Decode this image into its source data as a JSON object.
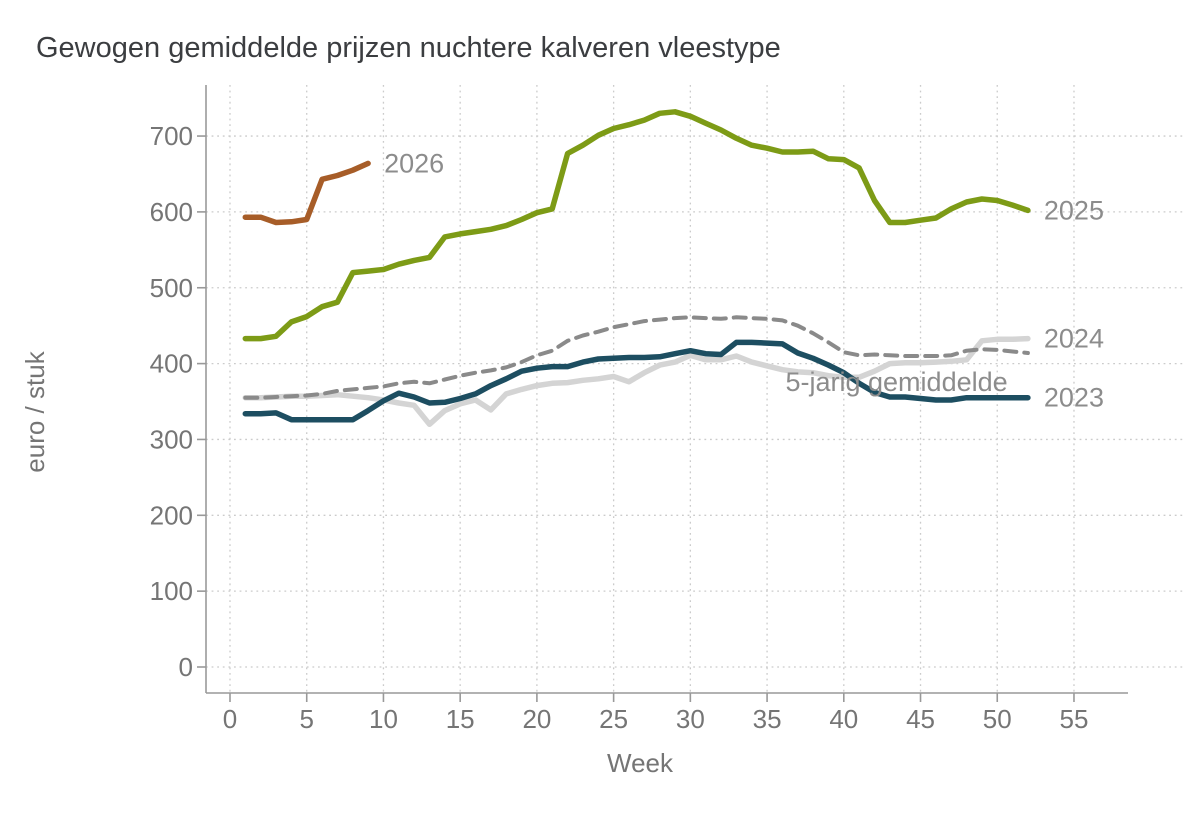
{
  "title": "Gewogen gemiddelde prijzen nuchtere kalveren vleestype",
  "chart_data": {
    "type": "line",
    "title": "Gewogen gemiddelde prijzen nuchtere kalveren vleestype",
    "xlabel": "Week",
    "ylabel": "euro / stuk",
    "x_ticks": [
      0,
      5,
      10,
      15,
      20,
      25,
      30,
      35,
      40,
      45,
      50,
      55
    ],
    "y_ticks": [
      0,
      100,
      200,
      300,
      400,
      500,
      600,
      700
    ],
    "xlim": [
      0,
      58.5
    ],
    "ylim": [
      0,
      767
    ],
    "grid": "dotted",
    "legend_position": "inline-labels",
    "colors": {
      "grid": "#cbcbcb",
      "axis": "#999999",
      "tick_text": "#757575",
      "title_text": "#3b3d40",
      "label_text": "#8c8c8c"
    },
    "series": [
      {
        "name": "2024",
        "label": "2024",
        "color": "#d4d4d4",
        "style": "solid",
        "width": 5.5,
        "start_week": 1,
        "label_at": "end",
        "values": [
          355,
          355,
          356,
          357,
          357,
          358,
          359,
          357,
          355,
          352,
          348,
          345,
          320,
          338,
          347,
          352,
          339,
          360,
          366,
          371,
          374,
          375,
          378,
          380,
          383,
          376,
          388,
          398,
          402,
          411,
          405,
          405,
          410,
          402,
          397,
          392,
          389,
          388,
          384,
          382,
          382,
          390,
          400,
          401,
          401,
          402,
          403,
          405,
          430,
          432,
          432,
          433
        ]
      },
      {
        "name": "5-jarig gemiddelde",
        "label": "5-jarig gemiddelde",
        "color": "#8a8a8a",
        "style": "dashed",
        "width": 4,
        "start_week": 1,
        "label_at": {
          "week": 36.2,
          "value": 364
        },
        "values": [
          355,
          355,
          356,
          357,
          358,
          360,
          364,
          366,
          368,
          370,
          374,
          376,
          374,
          379,
          384,
          388,
          391,
          395,
          402,
          411,
          417,
          430,
          437,
          442,
          448,
          452,
          456,
          458,
          460,
          461,
          460,
          459,
          461,
          460,
          459,
          457,
          450,
          440,
          428,
          415,
          411,
          412,
          411,
          410,
          410,
          410,
          411,
          417,
          419,
          418,
          416,
          414
        ]
      },
      {
        "name": "2023",
        "label": "2023",
        "color": "#1d4e61",
        "style": "solid",
        "width": 5.5,
        "start_week": 1,
        "label_at": "end",
        "values": [
          334,
          334,
          335,
          326,
          326,
          326,
          326,
          326,
          338,
          351,
          361,
          356,
          348,
          349,
          354,
          360,
          371,
          380,
          390,
          394,
          396,
          396,
          402,
          406,
          407,
          408,
          408,
          409,
          413,
          417,
          413,
          412,
          428,
          428,
          427,
          426,
          414,
          407,
          398,
          388,
          374,
          362,
          356,
          356,
          354,
          352,
          352,
          355,
          355,
          355,
          355,
          355
        ]
      },
      {
        "name": "2025",
        "label": "2025",
        "color": "#7d9b16",
        "style": "solid",
        "width": 5.5,
        "start_week": 1,
        "label_at": "end",
        "values": [
          433,
          433,
          436,
          455,
          462,
          475,
          481,
          520,
          522,
          524,
          531,
          536,
          540,
          567,
          571,
          574,
          577,
          582,
          590,
          599,
          604,
          677,
          688,
          701,
          710,
          715,
          721,
          730,
          732,
          726,
          717,
          708,
          697,
          688,
          684,
          679,
          679,
          680,
          670,
          669,
          658,
          615,
          586,
          586,
          589,
          592,
          604,
          613,
          617,
          615,
          609,
          602
        ]
      },
      {
        "name": "2026",
        "label": "2026",
        "color": "#a75d28",
        "style": "solid",
        "width": 5.5,
        "start_week": 1,
        "label_at": "end",
        "values": [
          593,
          593,
          586,
          587,
          590,
          643,
          648,
          655,
          664
        ]
      }
    ]
  }
}
